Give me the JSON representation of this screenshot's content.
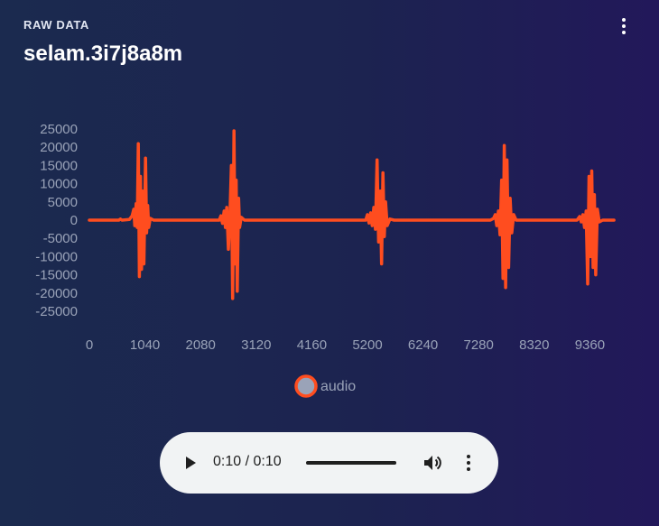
{
  "header": {
    "section_label": "RAW DATA",
    "title": "selam.3i7j8a8m",
    "menu_icon": "more-vert-icon"
  },
  "colors": {
    "series": "#ff4d1f",
    "legend_fill": "#9aa3b8",
    "tick_text": "#9aa3b8"
  },
  "chart_data": {
    "type": "line",
    "title": "",
    "xlabel": "",
    "ylabel": "",
    "xlim": [
      0,
      10400
    ],
    "ylim": [
      -30000,
      25000
    ],
    "grid": false,
    "legend_position": "bottom-center",
    "x_ticks": [
      0,
      1040,
      2080,
      3120,
      4160,
      5200,
      6240,
      7280,
      8320,
      9360
    ],
    "y_ticks": [
      25000,
      20000,
      15000,
      10000,
      5000,
      0,
      -5000,
      -10000,
      -15000,
      -20000,
      -25000
    ],
    "series": [
      {
        "name": "audio",
        "color": "#ff4d1f",
        "points": [
          [
            0,
            0
          ],
          [
            550,
            0
          ],
          [
            580,
            300
          ],
          [
            610,
            0
          ],
          [
            750,
            200
          ],
          [
            800,
            1200
          ],
          [
            830,
            3000
          ],
          [
            850,
            -1500
          ],
          [
            875,
            4500
          ],
          [
            895,
            -2000
          ],
          [
            915,
            21000
          ],
          [
            935,
            -15500
          ],
          [
            955,
            12000
          ],
          [
            975,
            -13500
          ],
          [
            995,
            8000
          ],
          [
            1020,
            -12000
          ],
          [
            1050,
            17000
          ],
          [
            1070,
            -3500
          ],
          [
            1090,
            4000
          ],
          [
            1110,
            -2000
          ],
          [
            1140,
            500
          ],
          [
            1200,
            0
          ],
          [
            2430,
            0
          ],
          [
            2460,
            1200
          ],
          [
            2490,
            -900
          ],
          [
            2520,
            2500
          ],
          [
            2545,
            -2000
          ],
          [
            2570,
            3500
          ],
          [
            2600,
            -8000
          ],
          [
            2630,
            2000
          ],
          [
            2655,
            15000
          ],
          [
            2680,
            -21500
          ],
          [
            2705,
            24500
          ],
          [
            2725,
            -12000
          ],
          [
            2745,
            11000
          ],
          [
            2765,
            -19500
          ],
          [
            2790,
            6000
          ],
          [
            2810,
            -2000
          ],
          [
            2840,
            800
          ],
          [
            2900,
            0
          ],
          [
            5170,
            0
          ],
          [
            5200,
            1500
          ],
          [
            5230,
            -800
          ],
          [
            5260,
            2000
          ],
          [
            5290,
            -1500
          ],
          [
            5320,
            3500
          ],
          [
            5350,
            -2500
          ],
          [
            5380,
            16500
          ],
          [
            5410,
            -6000
          ],
          [
            5440,
            8000
          ],
          [
            5465,
            -12000
          ],
          [
            5490,
            13000
          ],
          [
            5515,
            -4500
          ],
          [
            5540,
            5000
          ],
          [
            5570,
            -1500
          ],
          [
            5620,
            300
          ],
          [
            5700,
            0
          ],
          [
            7500,
            0
          ],
          [
            7560,
            500
          ],
          [
            7590,
            1500
          ],
          [
            7620,
            -1500
          ],
          [
            7650,
            2500
          ],
          [
            7680,
            -4000
          ],
          [
            7710,
            11000
          ],
          [
            7735,
            -16000
          ],
          [
            7760,
            20500
          ],
          [
            7785,
            -18500
          ],
          [
            7810,
            16500
          ],
          [
            7840,
            -13000
          ],
          [
            7870,
            6000
          ],
          [
            7900,
            -3500
          ],
          [
            7935,
            1500
          ],
          [
            7980,
            0
          ],
          [
            9120,
            0
          ],
          [
            9170,
            1000
          ],
          [
            9200,
            -500
          ],
          [
            9230,
            1500
          ],
          [
            9260,
            -2000
          ],
          [
            9290,
            2500
          ],
          [
            9320,
            -17500
          ],
          [
            9345,
            12000
          ],
          [
            9370,
            -10000
          ],
          [
            9395,
            13500
          ],
          [
            9420,
            -13000
          ],
          [
            9445,
            7000
          ],
          [
            9470,
            -15000
          ],
          [
            9500,
            3000
          ],
          [
            9535,
            -500
          ],
          [
            9600,
            0
          ],
          [
            9810,
            0
          ]
        ]
      }
    ]
  },
  "audio_player": {
    "time": "0:10 / 0:10",
    "progress": 1.0,
    "play_icon": "play-icon",
    "volume_icon": "volume-icon",
    "menu_icon": "more-vert-icon"
  }
}
